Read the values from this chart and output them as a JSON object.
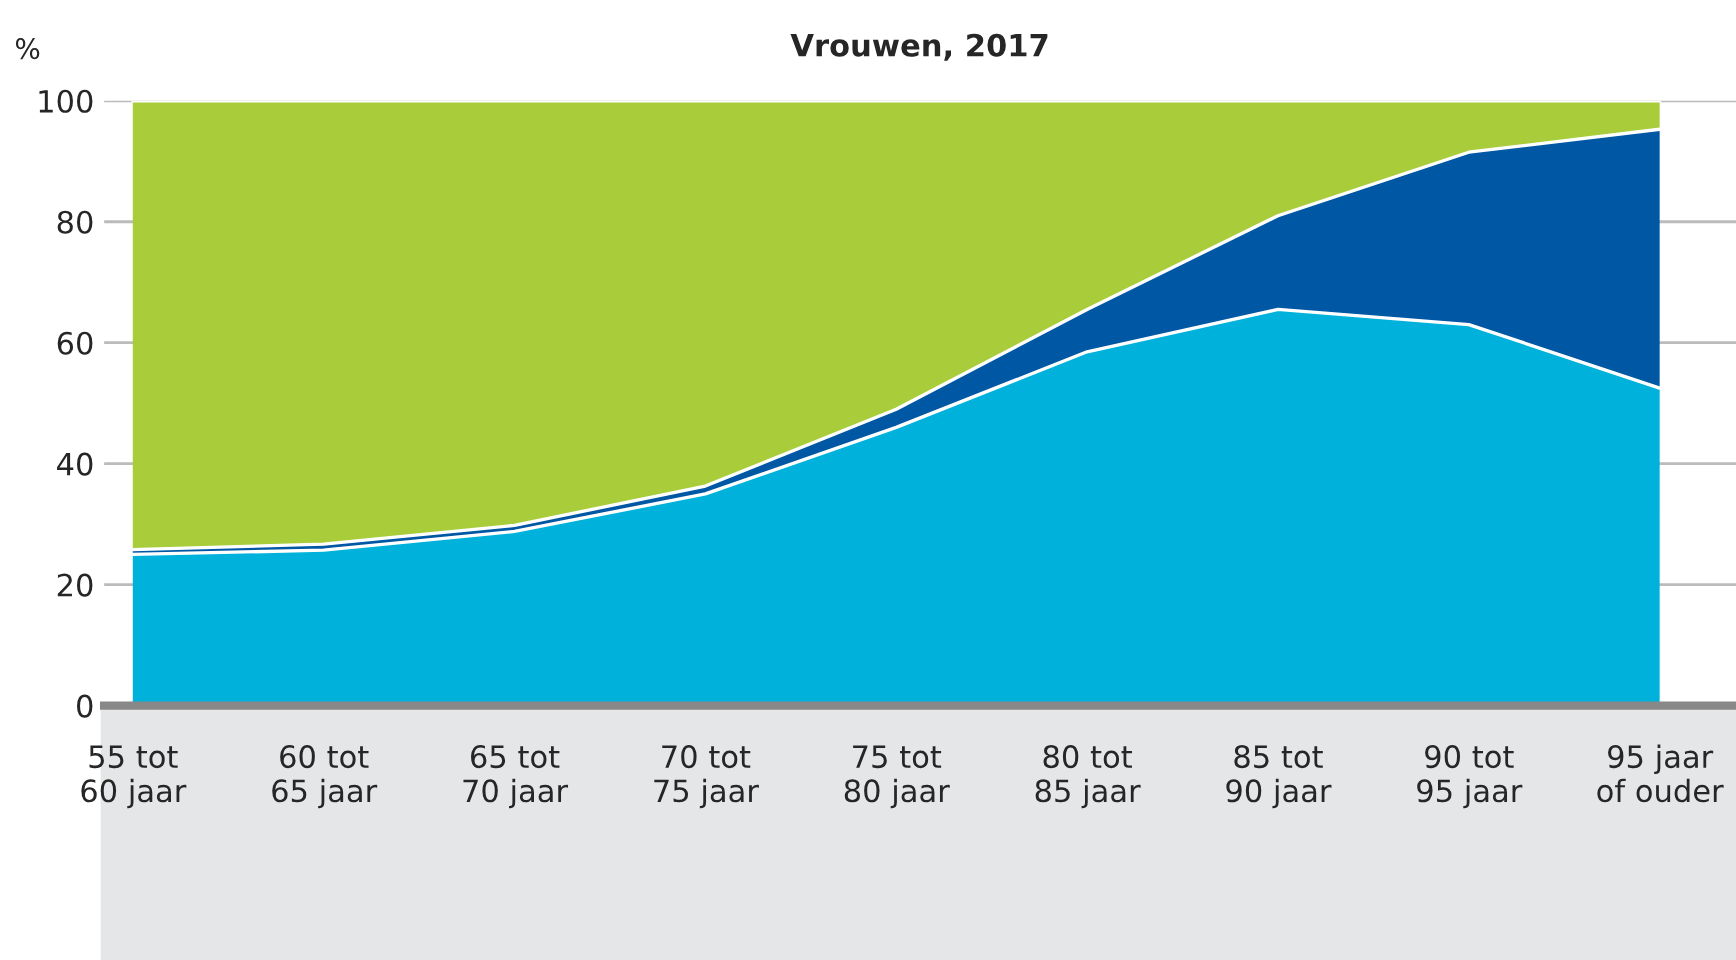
{
  "chart_data": {
    "type": "area",
    "title": "Vrouwen, 2017",
    "ylabel": "%",
    "stacked": true,
    "categories": [
      "55 tot\n60 jaar",
      "60 tot\n65 jaar",
      "65 tot\n70 jaar",
      "70 tot\n75 jaar",
      "75 tot\n80 jaar",
      "80 tot\n85 jaar",
      "85 tot\n90 jaar",
      "90 tot\n95 jaar",
      "95 jaar\nof ouder"
    ],
    "series": [
      {
        "color": "#00b1dc",
        "values": [
          25,
          25.7,
          28.8,
          35,
          46,
          58.5,
          65.5,
          63,
          52.5
        ]
      },
      {
        "color": "#0058a5",
        "values": [
          0.8,
          1.0,
          1.0,
          1.3,
          3,
          7,
          15.5,
          28.5,
          42.8
        ]
      },
      {
        "color": "#a9cd3a",
        "values": [
          74.2,
          73.3,
          70.2,
          63.7,
          51,
          34.5,
          19,
          8.5,
          4.7
        ]
      }
    ],
    "ylim": [
      0,
      100
    ],
    "yticks": [
      0,
      20,
      40,
      60,
      80,
      100
    ],
    "grid": "y",
    "legend": false
  }
}
